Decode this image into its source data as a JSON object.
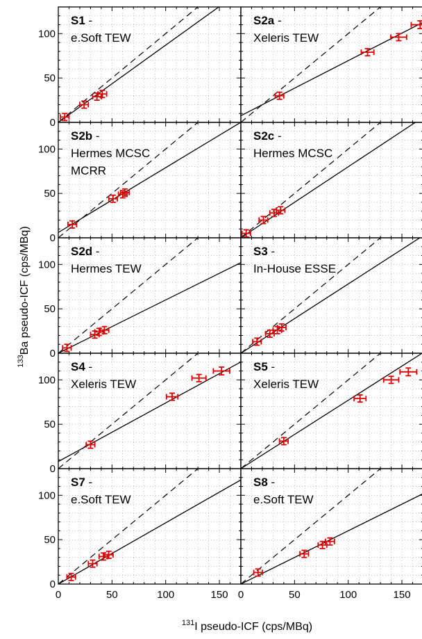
{
  "chart_data": {
    "type": "scatter",
    "x_axis": {
      "label_sup": "131",
      "label_text": "I pseudo-ICF (cps/MBq)",
      "range": [
        0,
        170
      ],
      "ticks": [
        0,
        50,
        100,
        150
      ],
      "tick_labels": [
        "0",
        "50",
        "100",
        "150"
      ]
    },
    "y_axis": {
      "label_sup": "133",
      "label_text": "Ba pseudo-ICF (cps/MBq)",
      "range": [
        0,
        130
      ],
      "ticks": [
        0,
        50,
        100
      ],
      "tick_labels": [
        "0",
        "50",
        "100"
      ]
    },
    "grid": true,
    "reference_line": "dashed identity line y = x",
    "colors": {
      "points": "#dd0000",
      "fit_line": "#000000",
      "grid": "#9a9a9a"
    },
    "panels": [
      {
        "id": "S1",
        "lines": [
          "e.Soft TEW"
        ],
        "fit": [
          0,
          0.87
        ],
        "points": [
          {
            "x": 6,
            "y": 6
          },
          {
            "x": 24,
            "y": 20
          },
          {
            "x": 36,
            "y": 29
          },
          {
            "x": 41,
            "y": 32
          }
        ]
      },
      {
        "id": "S2a",
        "lines": [
          "Xeleris TEW"
        ],
        "fit": [
          7.5,
          0.62
        ],
        "points": [
          {
            "x": 36,
            "y": 30
          },
          {
            "x": 118,
            "y": 79
          },
          {
            "x": 147,
            "y": 96
          },
          {
            "x": 167,
            "y": 110
          }
        ]
      },
      {
        "id": "S2b",
        "lines": [
          "Hermes MCSC",
          "MCRR"
        ],
        "fit": [
          6,
          0.73
        ],
        "points": [
          {
            "x": 13,
            "y": 15
          },
          {
            "x": 51,
            "y": 44
          },
          {
            "x": 60,
            "y": 49
          },
          {
            "x": 62,
            "y": 51
          }
        ]
      },
      {
        "id": "S2c",
        "lines": [
          "Hermes MCSC"
        ],
        "fit": [
          0,
          0.8
        ],
        "points": [
          {
            "x": 5,
            "y": 5
          },
          {
            "x": 21,
            "y": 20
          },
          {
            "x": 31,
            "y": 28
          },
          {
            "x": 37,
            "y": 31
          }
        ]
      },
      {
        "id": "S2d",
        "lines": [
          "Hermes TEW"
        ],
        "fit": [
          0,
          0.6
        ],
        "points": [
          {
            "x": 8,
            "y": 6
          },
          {
            "x": 34,
            "y": 21
          },
          {
            "x": 38,
            "y": 24
          },
          {
            "x": 43,
            "y": 26
          }
        ]
      },
      {
        "id": "S3",
        "lines": [
          "In-House ESSE"
        ],
        "fit": [
          0,
          0.78
        ],
        "points": [
          {
            "x": 15,
            "y": 13
          },
          {
            "x": 27,
            "y": 22
          },
          {
            "x": 34,
            "y": 26
          },
          {
            "x": 38,
            "y": 29
          }
        ]
      },
      {
        "id": "S4",
        "lines": [
          "Xeleris TEW"
        ],
        "fit": [
          8,
          0.66
        ],
        "points": [
          {
            "x": 30,
            "y": 27
          },
          {
            "x": 106,
            "y": 81
          },
          {
            "x": 131,
            "y": 102
          },
          {
            "x": 152,
            "y": 110
          }
        ]
      },
      {
        "id": "S5",
        "lines": [
          "Xeleris TEW"
        ],
        "fit": [
          0,
          0.77
        ],
        "points": [
          {
            "x": 40,
            "y": 31
          },
          {
            "x": 111,
            "y": 79
          },
          {
            "x": 140,
            "y": 100
          },
          {
            "x": 156,
            "y": 109
          }
        ]
      },
      {
        "id": "S7",
        "lines": [
          "e.Soft TEW"
        ],
        "fit": [
          0,
          0.69
        ],
        "points": [
          {
            "x": 12,
            "y": 8
          },
          {
            "x": 32,
            "y": 23
          },
          {
            "x": 42,
            "y": 31
          },
          {
            "x": 47,
            "y": 33
          }
        ]
      },
      {
        "id": "S8",
        "lines": [
          "e.Soft TEW"
        ],
        "fit": [
          0,
          0.6
        ],
        "points": [
          {
            "x": 16,
            "y": 13
          },
          {
            "x": 59,
            "y": 34
          },
          {
            "x": 76,
            "y": 44
          },
          {
            "x": 83,
            "y": 48
          }
        ]
      }
    ]
  }
}
